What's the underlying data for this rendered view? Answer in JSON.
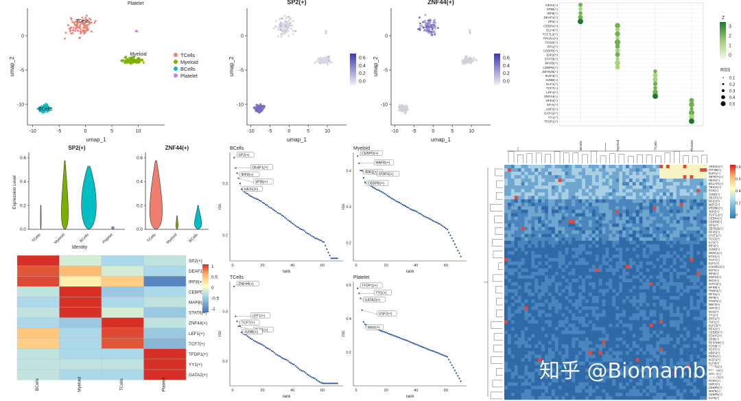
{
  "watermark": "知乎 @Biomamba",
  "umap": {
    "xlabel": "umap_1",
    "ylabel": "umap_2",
    "xticks": [
      "-10",
      "-5",
      "0",
      "5",
      "10"
    ],
    "yticks": [
      "0",
      "-5",
      "-10"
    ],
    "cluster_labels": [
      "TCells",
      "Platelet",
      "Myeloid",
      "BCells"
    ],
    "legend": [
      {
        "label": "TCells",
        "color": "#F07D6D"
      },
      {
        "label": "Myeloid",
        "color": "#7CAE00"
      },
      {
        "label": "BCells",
        "color": "#00BFC4"
      },
      {
        "label": "Platelet",
        "color": "#C77CFF"
      }
    ]
  },
  "feature_plots": [
    {
      "title": "SP2(+)",
      "ylabel": "umap_2",
      "xlabel": "umap_1",
      "xticks": [
        "-10",
        "-5",
        "0",
        "5",
        "10"
      ],
      "yticks": [
        "0",
        "-5",
        "-10"
      ],
      "colorbar": [
        "0.6",
        "0.4",
        "0.2",
        "0.0"
      ]
    },
    {
      "title": "ZNF44(+)",
      "ylabel": "umap_2",
      "xlabel": "umap_1",
      "xticks": [
        "-10",
        "-5",
        "0",
        "5",
        "10"
      ],
      "yticks": [
        "0",
        "-5",
        "-10"
      ],
      "colorbar": [
        "0.6",
        "0.4",
        "0.2",
        "0.0"
      ]
    }
  ],
  "dotplot": {
    "genes": [
      "HES1(+)",
      "SPIB(+)",
      "IRF8(+)",
      "DEAF1(+)",
      "SP2(+)",
      "CEBPA(+)",
      "ELF4(+)",
      "TCF7L2(+)",
      "PPARA(+)",
      "FOSB(+)",
      "SPI1(+)",
      "CEBPB(+)",
      "JDP2(+)",
      "STAT6(+)",
      "MAFB(+)",
      "CEBPD(+)",
      "ZBTB25(+)",
      "IKZF3(+)",
      "JUNB(+)",
      "ELF1(+)",
      "TCF7(+)",
      "LEF1(+)",
      "ZNF44(+)",
      "NFE2(+)",
      "MAX(+)",
      "USF2(+)",
      "GATA2(+)",
      "YY1(+)",
      "TFDP1(+)"
    ],
    "groups": [
      "BCells",
      "Myeloid",
      "TCells",
      "Platelet"
    ],
    "z_title": "Z",
    "z_ticks": [
      "3",
      "2",
      "1",
      "0"
    ],
    "rss_title": "RSS",
    "rss_ticks": [
      "0.1",
      "0.2",
      "0.3",
      "0.4",
      "0.5"
    ]
  },
  "violin": {
    "ylabel": "Expression Level",
    "xlabel": "Identity",
    "categories": [
      "TCells",
      "Myeloid",
      "BCells",
      "Platelet"
    ],
    "left_categories": [
      "TCells",
      "Myeloid",
      "BCells",
      "Platelet"
    ],
    "right_categories": [
      "TCells",
      "Myeloid",
      "BCells"
    ],
    "left_title": "SP2(+)",
    "right_title": "ZNF44(+)",
    "left_yticks": [
      "0.6",
      "0.4",
      "0.2",
      "0.0"
    ],
    "right_yticks": [
      "0.6",
      "0.4",
      "0.2",
      "0.0"
    ]
  },
  "heatmap_small": {
    "rows": [
      "SP2(+)",
      "DEAF1(+)",
      "IRF8(+)",
      "CEBPD(+)",
      "MAFB(+)",
      "STAT6(+)",
      "ZNF44(+)",
      "LEF1(+)",
      "TCF7(+)",
      "TFDP1(+)",
      "YY1(+)",
      "GATA2(+)"
    ],
    "cols": [
      "BCells",
      "Myeloid",
      "TCells",
      "Platelet"
    ],
    "legend_ticks": [
      "1",
      "0.5",
      "0",
      "-0.5",
      "-1"
    ]
  },
  "rank_plots": [
    {
      "title": "BCells",
      "ylabel": "rss",
      "xlabel": "rank",
      "xticks": [
        "0",
        "20",
        "40",
        "60"
      ],
      "yticks": [
        "0.3",
        "0.2"
      ],
      "labels": [
        "SP2(+)",
        "DEAF1(+)",
        "IRF8(+)",
        "SPIB(+)",
        "HES1(+)"
      ]
    },
    {
      "title": "Myeloid",
      "ylabel": "rss",
      "xlabel": "rank",
      "xticks": [
        "0",
        "20",
        "40",
        "60"
      ],
      "yticks": [
        "0.4",
        "0.3",
        "0.2"
      ],
      "labels": [
        "CEBPD(+)",
        "MAFB(+)",
        "JDP2(+)",
        "STAT6(+)",
        "CEBPB(+)"
      ]
    },
    {
      "title": "TCells",
      "ylabel": "rss",
      "xlabel": "rank",
      "xticks": [
        "0",
        "20",
        "40",
        "60"
      ],
      "yticks": [
        "0.3",
        "0.2"
      ],
      "labels": [
        "ZNF44(+)",
        "LEF1(+)",
        "TCF7(+)",
        "ELF1(+)",
        "JUNB(+)"
      ]
    },
    {
      "title": "Platelet",
      "ylabel": "rss",
      "xlabel": "rank",
      "xticks": [
        "0",
        "20",
        "40",
        "60"
      ],
      "yticks": [
        "0.6",
        "0.4",
        "0.2"
      ],
      "labels": [
        "TFDP1(+)",
        "YY1(+)",
        "GATA2(+)",
        "USF2(+)",
        "MAX(+)"
      ]
    }
  ],
  "big_heatmap": {
    "rows": [
      "ARID3A(+)",
      "ATF6B(+)",
      "IKZF1(+)",
      "ZBTB7A(+)",
      "HES1(+)",
      "BCLAF1(+)",
      "TBX21(+)",
      "FOS(+)",
      "JUNB(+)",
      "DEAF1(+)",
      "NFE2(+)",
      "MZF1(+)",
      "PRDM1(+)",
      "JDP2(+)",
      "TCF7L2(+)",
      "CEBPA(+)",
      "CEBPB(+)",
      "SPI1(+)",
      "ZBTB25(+)",
      "RFX5(+)",
      "STAT1(+)",
      "TCF3(+)",
      "ILF2(+)",
      "IRF4(+)",
      "JUNB(+)",
      "NR3C1(+)",
      "ETS1(+)",
      "TCF7(+)",
      "ELF1(+)",
      "CHURC1(+)",
      "ELF2(+)",
      "IRF8(+)",
      "ZNF44(+)",
      "ING4(+)",
      "GATA2(+)",
      "NFKB(+)",
      "TFDP1(+)",
      "RFX1(+)",
      "IRF9(+)",
      "TFDP1(+)",
      "MEF2(+)",
      "USF2(+)",
      "MAX(+)",
      "YY1(+)",
      "ZNF1(+)",
      "TAF1(+)",
      "KLF13(+)",
      "RFX2(+)",
      "CEBPD(+)",
      "FOXP1(+)",
      "SPIB(+)",
      "RFX4NK(+)",
      "FOSB(+)",
      "TCF7(+)",
      "XBP1(+)",
      "RXRA(+)",
      "IKZF1(+)",
      "KLF8(+)",
      "CREB1(+)",
      "BCL11A(+)",
      "STAT6(+)",
      "NFATC1(+)",
      "RARA(+)",
      "USF1(+)",
      "CEBPE(+)",
      "MAFB(+)",
      "CEBPD(+)",
      "KLF5(+)"
    ],
    "legend_ticks": [
      "0.8",
      "0.6",
      "0.4",
      "0.2",
      "0"
    ]
  },
  "colors": {
    "tcells": "#F07D6D",
    "myeloid": "#7CAE00",
    "bcells": "#00BFC4",
    "platelet": "#C77CFF",
    "heat_high": "#D7191C",
    "heat_low": "#2C7BB6"
  }
}
